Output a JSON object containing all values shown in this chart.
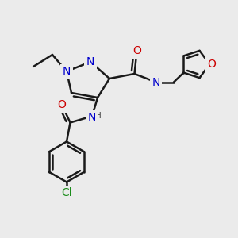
{
  "bg_color": "#ebebeb",
  "bond_color": "#1a1a1a",
  "bond_width": 1.8,
  "atom_colors": {
    "N": "#0000cc",
    "O": "#cc0000",
    "Cl": "#1a8c1a",
    "C": "#1a1a1a",
    "H": "#444444"
  },
  "font_size_atom": 10,
  "font_size_small": 8.5,
  "xlim": [
    0,
    10
  ],
  "ylim": [
    0,
    10
  ]
}
